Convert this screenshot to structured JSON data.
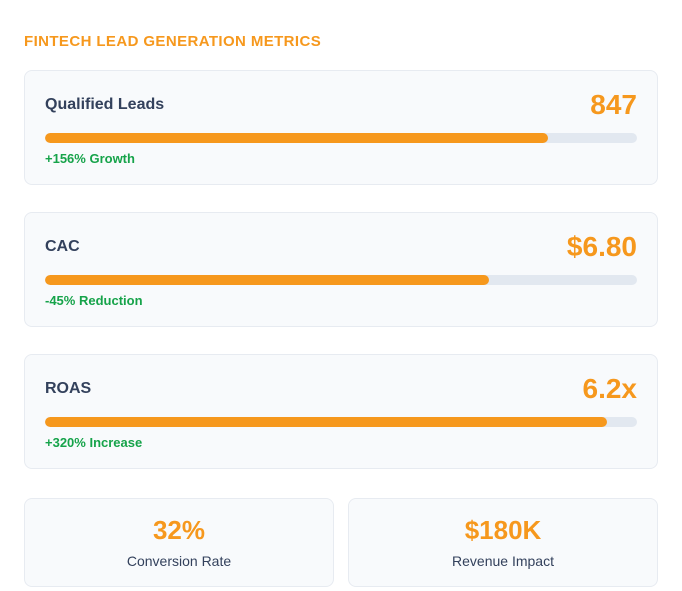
{
  "page": {
    "title": "FINTECH LEAD GENERATION METRICS"
  },
  "colors": {
    "accent_orange": "#F6981D",
    "positive_green": "#16A34A",
    "label_slate": "#33415C",
    "card_bg": "#F8FAFC",
    "card_border": "#E7EBF1",
    "track_gray": "#E2E8F0",
    "page_bg": "#FFFFFF"
  },
  "metrics": [
    {
      "label": "Qualified Leads",
      "value": "847",
      "progress_percent": 85,
      "change": "+156% Growth"
    },
    {
      "label": "CAC",
      "value": "$6.80",
      "progress_percent": 75,
      "change": "-45% Reduction"
    },
    {
      "label": "ROAS",
      "value": "6.2x",
      "progress_percent": 95,
      "change": "+320% Increase"
    }
  ],
  "summary_cards": [
    {
      "value": "32%",
      "label": "Conversion Rate"
    },
    {
      "value": "$180K",
      "label": "Revenue Impact"
    }
  ]
}
